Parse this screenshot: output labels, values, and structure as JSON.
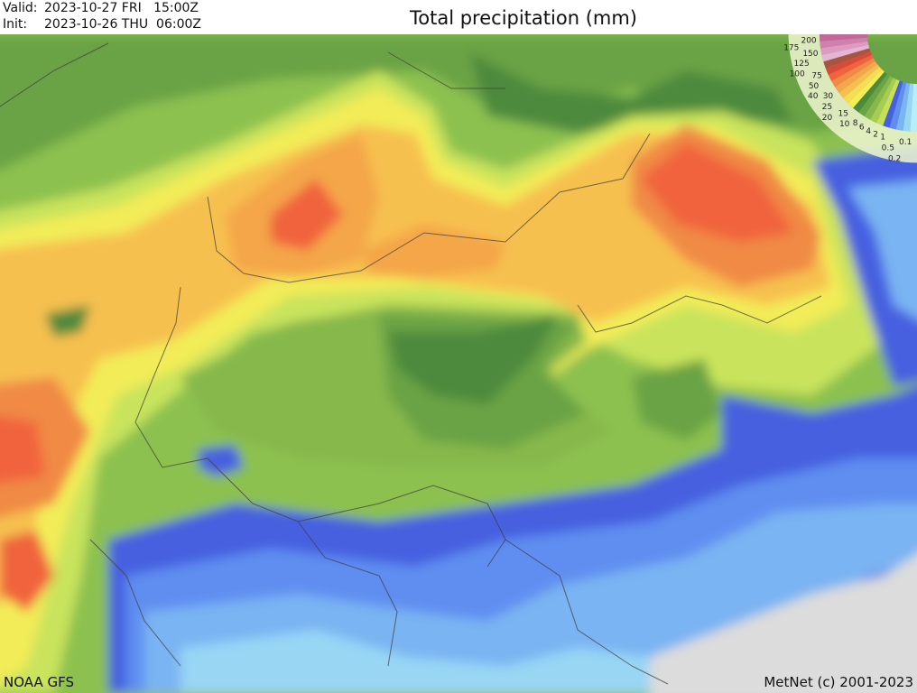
{
  "header": {
    "valid_label": "Valid:",
    "valid_value": "2023-10-27 FRI   15:00Z",
    "init_label": "Init:",
    "init_value": "2023-10-26 THU  06:00Z",
    "title": "Total precipitation (mm)"
  },
  "legend": {
    "unit": "mm",
    "levels": [
      "200",
      "175",
      "150",
      "125",
      "100",
      "75",
      "50",
      "40",
      "30",
      "25",
      "20",
      "15",
      "10",
      "8",
      "6",
      "4",
      "2",
      "1",
      "0.5",
      "0.2",
      "0.1"
    ],
    "colors": [
      "#c0699a",
      "#d27fae",
      "#dd9bc4",
      "#e6b4d4",
      "#a8553f",
      "#d94a3a",
      "#f0633e",
      "#f08a45",
      "#f4a64a",
      "#f6c04f",
      "#f5dd55",
      "#f2ee58",
      "#4e8a3c",
      "#6aa344",
      "#86b84c",
      "#a6cc52",
      "#c6e05a",
      "#4660e0",
      "#5f8ef0",
      "#7ab4f2",
      "#98d6f4",
      "#b8eef8"
    ]
  },
  "footer": {
    "model": "NOAA GFS",
    "copyright": "MetNet (c) 2001-2023"
  }
}
